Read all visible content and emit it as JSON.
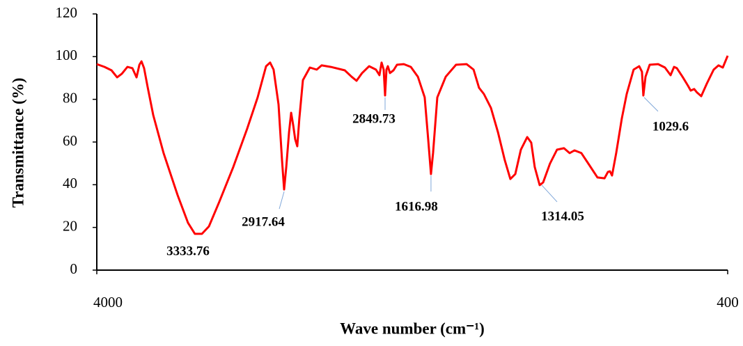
{
  "chart_data": {
    "type": "line",
    "x_label": "Wave number (cm⁻¹)",
    "y_label": "Transmittance (%)",
    "xlim": [
      4000,
      400
    ],
    "xticks": [
      4000,
      400
    ],
    "ylim": [
      0,
      120
    ],
    "yticks": [
      0,
      20,
      40,
      60,
      80,
      100,
      120
    ],
    "grid": false,
    "series": [
      {
        "color": "#ff0000",
        "x": [
          4000,
          3956,
          3916,
          3884,
          3857,
          3825,
          3797,
          3773,
          3757,
          3745,
          3730,
          3710,
          3678,
          3619,
          3539,
          3480,
          3440,
          3400,
          3360,
          3301,
          3221,
          3142,
          3082,
          3034,
          3011,
          2991,
          2963,
          2943,
          2931,
          2919,
          2903,
          2891,
          2879,
          2868,
          2856,
          2844,
          2824,
          2784,
          2745,
          2717,
          2665,
          2585,
          2546,
          2518,
          2486,
          2446,
          2407,
          2387,
          2375,
          2363,
          2355,
          2347,
          2339,
          2327,
          2307,
          2287,
          2248,
          2208,
          2168,
          2129,
          2109,
          2093,
          2081,
          2057,
          2009,
          1950,
          1890,
          1850,
          1819,
          1791,
          1751,
          1711,
          1672,
          1640,
          1612,
          1580,
          1544,
          1521,
          1501,
          1473,
          1453,
          1414,
          1374,
          1334,
          1302,
          1274,
          1235,
          1195,
          1143,
          1103,
          1083,
          1072,
          1060,
          1036,
          1004,
          976,
          937,
          905,
          889,
          881,
          869,
          845,
          797,
          758,
          726,
          706,
          690,
          658,
          627,
          611,
          591,
          575,
          551,
          519,
          480,
          452,
          428,
          400
        ],
        "values": [
          96.5,
          95.2,
          93.6,
          90.3,
          92.0,
          95.2,
          94.6,
          90.3,
          96.2,
          97.8,
          94.6,
          85.8,
          72.7,
          54.8,
          35.2,
          22.2,
          17.0,
          17.0,
          20.5,
          32.0,
          48.3,
          66.2,
          80.9,
          95.5,
          97.2,
          93.9,
          77.6,
          51.5,
          37.8,
          48.3,
          64.6,
          73.7,
          67.8,
          61.3,
          58.0,
          71.1,
          89.0,
          94.9,
          93.9,
          95.9,
          95.2,
          93.6,
          90.6,
          88.7,
          92.3,
          95.5,
          93.9,
          91.3,
          97.2,
          93.9,
          81.8,
          93.9,
          95.5,
          92.3,
          93.6,
          96.2,
          96.5,
          95.2,
          90.6,
          80.9,
          61.3,
          45.0,
          54.8,
          80.9,
          90.6,
          96.2,
          96.5,
          93.9,
          85.4,
          82.5,
          76.0,
          64.6,
          51.5,
          42.7,
          45.0,
          56.4,
          62.3,
          59.7,
          48.3,
          39.8,
          41.1,
          49.9,
          56.4,
          57.1,
          54.8,
          56.1,
          54.8,
          49.9,
          43.4,
          43.0,
          46.0,
          46.3,
          44.3,
          54.8,
          71.1,
          82.5,
          93.9,
          95.5,
          92.9,
          81.8,
          90.6,
          96.2,
          96.5,
          94.9,
          91.3,
          95.2,
          94.6,
          90.6,
          86.4,
          84.1,
          84.8,
          83.2,
          81.5,
          87.4,
          93.9,
          95.9,
          94.9,
          100.4
        ]
      }
    ],
    "annotations": [
      {
        "text": "3333.76",
        "x": 3420,
        "y": 16.3
      },
      {
        "text": "2917.64",
        "x": 2931,
        "y": 36.8
      },
      {
        "text": "2849.73",
        "x": 2355,
        "y": 80.9
      },
      {
        "text": "1616.98",
        "x": 2093,
        "y": 44.3
      },
      {
        "text": "1314.05",
        "x": 1461,
        "y": 39.8
      },
      {
        "text": "1029.6",
        "x": 877,
        "y": 80.9
      }
    ]
  }
}
